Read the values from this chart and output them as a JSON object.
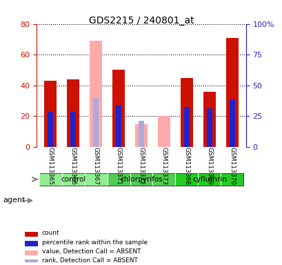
{
  "title": "GDS2215 / 240801_at",
  "samples": [
    "GSM113365",
    "GSM113366",
    "GSM113367",
    "GSM113371",
    "GSM113372",
    "GSM113373",
    "GSM113368",
    "GSM113369",
    "GSM113370"
  ],
  "groups": [
    {
      "label": "control",
      "indices": [
        0,
        1,
        2
      ],
      "color": "#90ee90"
    },
    {
      "label": "chlorpyrifos",
      "indices": [
        3,
        4,
        5
      ],
      "color": "#50cd50"
    },
    {
      "label": "cyfluthrin",
      "indices": [
        6,
        7,
        8
      ],
      "color": "#22cc22"
    }
  ],
  "count_values": [
    43,
    44,
    null,
    50,
    null,
    null,
    45,
    36,
    71
  ],
  "rank_values": [
    23,
    23,
    null,
    27,
    null,
    null,
    26,
    25,
    31
  ],
  "absent_value_values": [
    null,
    null,
    69,
    null,
    15,
    20,
    null,
    null,
    null
  ],
  "absent_rank_values": [
    null,
    null,
    32,
    null,
    17,
    null,
    null,
    null,
    null
  ],
  "ylim": [
    0,
    80
  ],
  "yticks_left": [
    0,
    20,
    40,
    60,
    80
  ],
  "yticks_right": [
    0,
    25,
    50,
    75,
    100
  ],
  "bar_width": 0.55,
  "count_color": "#cc1100",
  "rank_color": "#2222cc",
  "absent_value_color": "#ffaaaa",
  "absent_rank_color": "#aaaadd",
  "bg_color": "#ffffff",
  "plot_bg": "#ffffff",
  "left_axis_color": "#cc1100",
  "right_axis_color": "#2222cc",
  "agent_label": "agent",
  "legend_items": [
    {
      "label": "count",
      "color": "#cc1100"
    },
    {
      "label": "percentile rank within the sample",
      "color": "#2222cc"
    },
    {
      "label": "value, Detection Call = ABSENT",
      "color": "#ffaaaa"
    },
    {
      "label": "rank, Detection Call = ABSENT",
      "color": "#aaaadd"
    }
  ]
}
